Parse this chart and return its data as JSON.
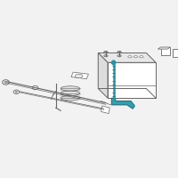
{
  "bg_color": "#f2f2f2",
  "line_color": "#666666",
  "highlight_color": "#2196a6",
  "highlight_dark": "#0d6e7a",
  "fig_size": [
    2.0,
    2.0
  ],
  "dpi": 100,
  "xlim": [
    10,
    195
  ],
  "ylim": [
    20,
    185
  ]
}
